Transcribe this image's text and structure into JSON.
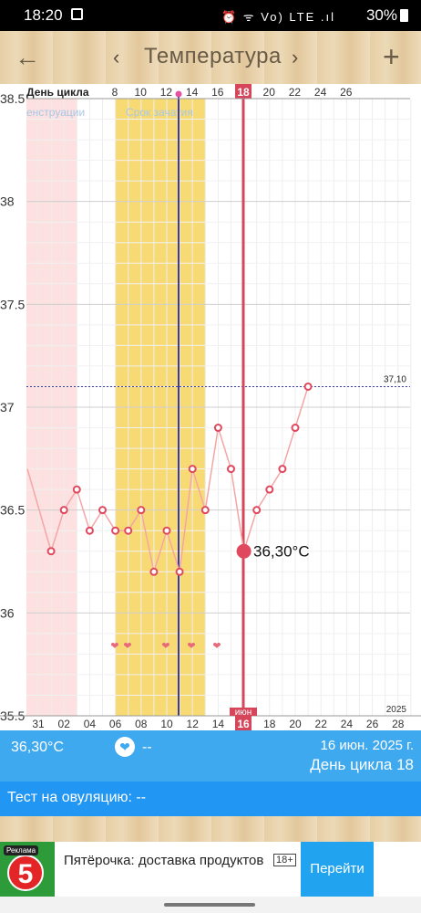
{
  "status_bar": {
    "time": "18:20",
    "icons": "⏰ ᯤ Vo) LTE .ıl",
    "battery": "30%"
  },
  "app_bar": {
    "title": "Температура",
    "back": "←",
    "prev": "‹",
    "next": "›",
    "add": "+"
  },
  "chart_data": {
    "type": "line",
    "ylim": [
      35.5,
      38.5
    ],
    "y_ticks": [
      "38.5",
      "38",
      "37.5",
      "37",
      "36.5",
      "36",
      "35.5"
    ],
    "top_axis_label": "День цикла",
    "cycle_day_ticks": [
      "8",
      "10",
      "12",
      "14",
      "16",
      "18",
      "20",
      "22",
      "24",
      "26"
    ],
    "highlight_cycle_day": "18",
    "date_ticks": [
      "31",
      "02",
      "04",
      "06",
      "08",
      "10",
      "12",
      "14",
      "16",
      "18",
      "20",
      "22",
      "24",
      "26",
      "28"
    ],
    "highlight_date": "16",
    "month_label": "июн",
    "year_label": "2025",
    "menstruation_label": "енструации",
    "fertile_label": "Срок зачатия",
    "threshold_value": 37.1,
    "threshold_label": "37,10",
    "current_value_label": "36,30°C",
    "temperatures": [
      36.7,
      36.3,
      36.5,
      36.6,
      36.4,
      36.5,
      36.4,
      36.4,
      36.5,
      36.2,
      36.4,
      36.2,
      36.7,
      36.5,
      36.9,
      36.7,
      36.3,
      36.5,
      36.6,
      36.7,
      36.9,
      37.1
    ],
    "colors": {
      "line": "#f4a6a6",
      "point": "#e0485e",
      "menstruation": "#fde0e0",
      "fertile": "#f8da74",
      "ovulation_line": "#3b3b9e",
      "today_line": "#d6455a",
      "threshold": "#3b3bb0"
    }
  },
  "info": {
    "temperature": "36,30°C",
    "heart": "❤",
    "dash": "--",
    "date": "16 июн. 2025 г.",
    "cycle_day": "День цикла 18"
  },
  "ovulation_test": {
    "label": "Тест на овуляцию: --"
  },
  "ad": {
    "badge": "Реклама",
    "logo_text": "5",
    "text": "Пятёрочка: доставка продуктов",
    "age": "18+",
    "button": "Перейти"
  }
}
